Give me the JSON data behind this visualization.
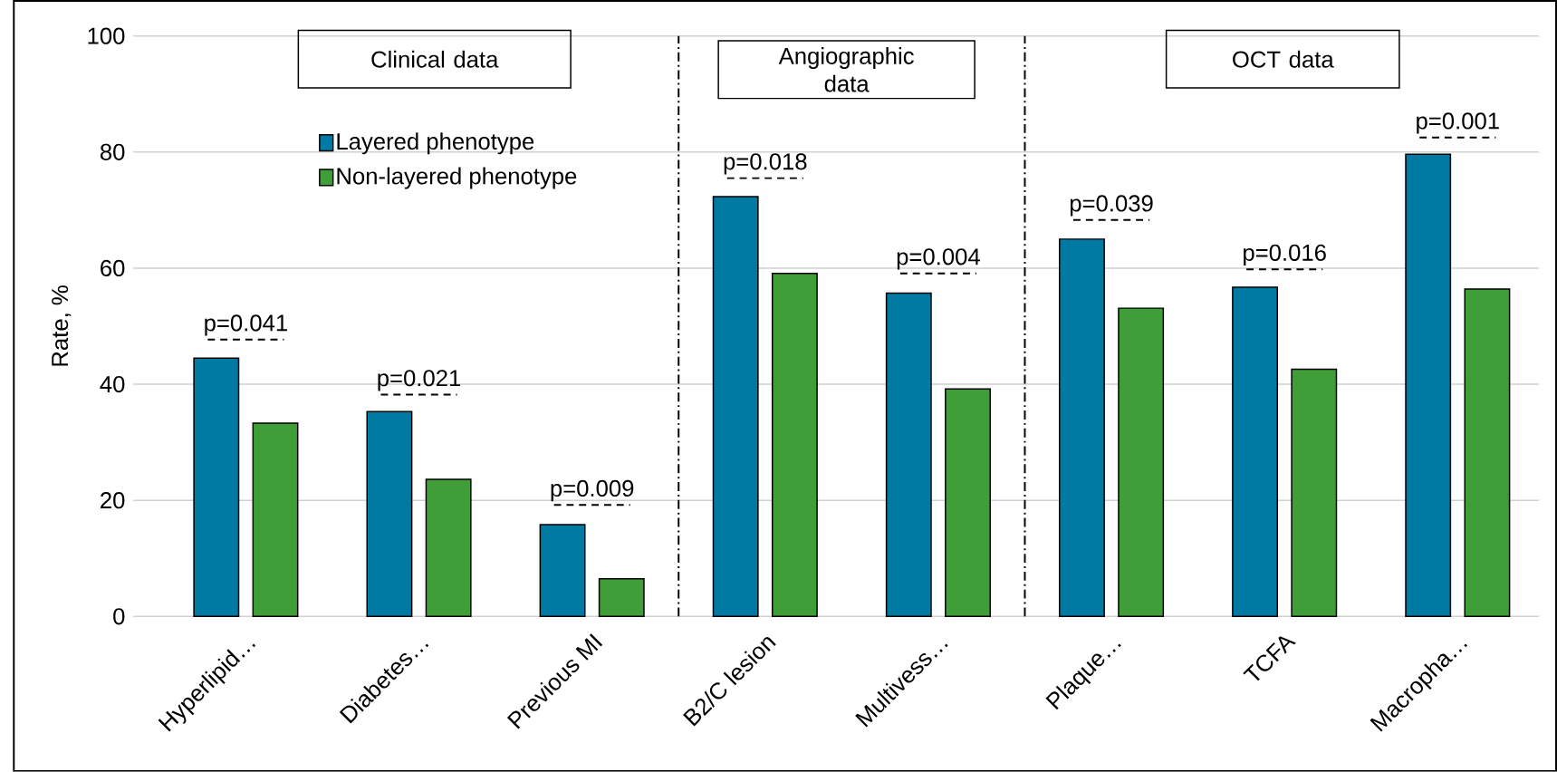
{
  "chart_data": {
    "type": "bar",
    "ylabel": "Rate, %",
    "categories": [
      "Hyperlipid…",
      "Diabetes…",
      "Previous MI",
      "B2/C lesion",
      "Multivess…",
      "Plaque…",
      "TCFA",
      "Macropha…"
    ],
    "series": [
      {
        "name": "Layered phenotype",
        "color": "#0079a3",
        "values": [
          44.5,
          35.3,
          15.8,
          72.3,
          55.7,
          65.0,
          56.7,
          79.6
        ]
      },
      {
        "name": "Non-layered phenotype",
        "color": "#3f9e38",
        "values": [
          33.3,
          23.6,
          6.5,
          59.1,
          39.2,
          53.1,
          42.6,
          56.4
        ]
      }
    ],
    "ylim": [
      0,
      100
    ],
    "yticks": [
      0,
      20,
      40,
      60,
      80,
      100
    ],
    "grid": "y",
    "legend": "top left",
    "annotations": [
      "Clinical data",
      "Angiographic data",
      "OCT data",
      "p=0.041",
      "p=0.021",
      "p=0.009",
      "p=0.018",
      "p=0.004",
      "p=0.039",
      "p=0.016",
      "p=0.001"
    ]
  }
}
